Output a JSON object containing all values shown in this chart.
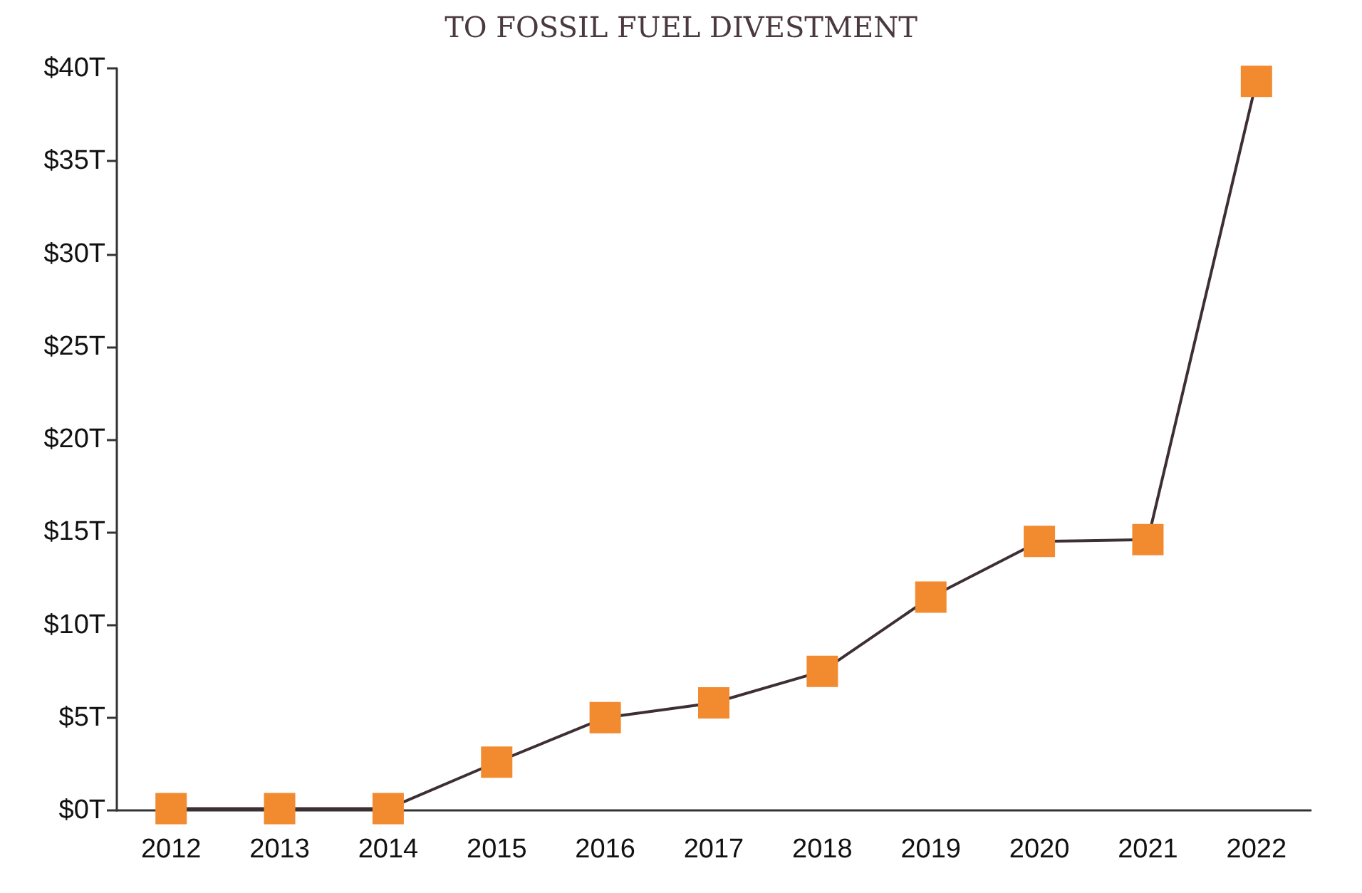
{
  "chart_data": {
    "type": "line",
    "title": "TO FOSSIL FUEL DIVESTMENT",
    "categories": [
      "2012",
      "2013",
      "2014",
      "2015",
      "2016",
      "2017",
      "2018",
      "2019",
      "2020",
      "2021",
      "2022"
    ],
    "series": [
      {
        "color": "#f28a30",
        "values": [
          0.1,
          0.1,
          0.1,
          2.6,
          5.0,
          5.8,
          7.5,
          11.5,
          14.5,
          14.6,
          39.3
        ]
      }
    ],
    "ylim": [
      0,
      40
    ],
    "yticks": [
      {
        "value": 0,
        "label": "$0T"
      },
      {
        "value": 5,
        "label": "$5T"
      },
      {
        "value": 10,
        "label": "$10T"
      },
      {
        "value": 15,
        "label": "$15T"
      },
      {
        "value": 20,
        "label": "$20T"
      },
      {
        "value": 25,
        "label": "$25T"
      },
      {
        "value": 30,
        "label": "$30T"
      },
      {
        "value": 35,
        "label": "$35T"
      },
      {
        "value": 40,
        "label": "$40T"
      }
    ],
    "grid": false,
    "marker": "square",
    "line_style": "solid"
  }
}
